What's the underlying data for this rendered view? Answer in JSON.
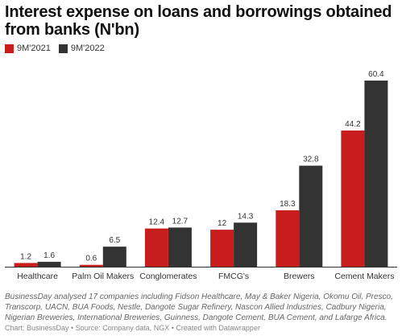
{
  "chart_data": {
    "type": "bar",
    "title": "Interest expense on loans and borrowings obtained from banks (N'bn)",
    "categories": [
      "Healthcare",
      "Palm Oil Makers",
      "Conglomerates",
      "FMCG's",
      "Brewers",
      "Cement Makers"
    ],
    "series": [
      {
        "name": "9M'2021",
        "color": "#c71e1d",
        "values": [
          1.2,
          0.6,
          12.4,
          12,
          18.3,
          44.2
        ],
        "labels": [
          "1.2",
          "0.6",
          "12.4",
          "12",
          "18.3",
          "44.2"
        ]
      },
      {
        "name": "9M'2022",
        "color": "#333333",
        "values": [
          1.6,
          6.5,
          12.7,
          14.3,
          32.8,
          60.4
        ],
        "labels": [
          "1.6",
          "6.5",
          "12.7",
          "14.3",
          "32.8",
          "60.4"
        ]
      }
    ],
    "ylim": [
      0,
      60.4
    ],
    "legend_position": "top-left",
    "grid": false
  },
  "footnote": "BusinessDay analysed 17 companies including Fidson Healthcare, May & Baker Nigeria, Okomu Oil, Presco, Transcorp, UACN, BUA Foods, Nestle, Dangote Sugar Refinery, Nascon Allied Industries, Cadbury Nigeria, Nigerian Breweries, International Breweries, Guinness, Dangote Cement, BUA Cement, and Lafarge Africa.",
  "credit": "Chart: BusinessDay • Source: Company data, NGX • Created with Datawrapper"
}
